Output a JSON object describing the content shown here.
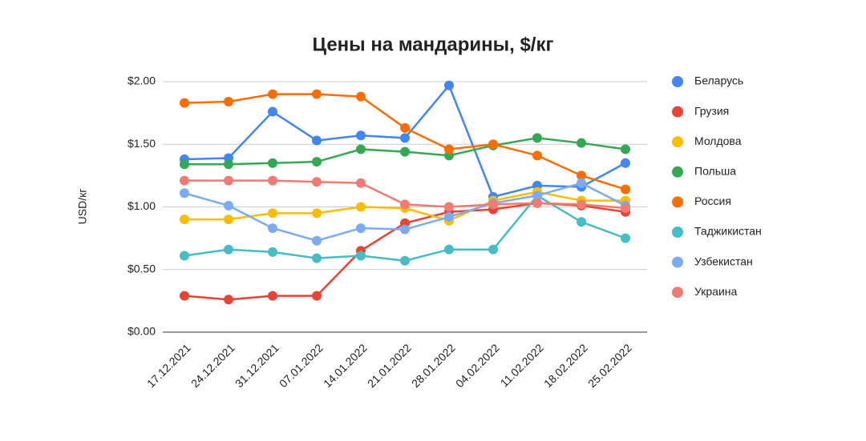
{
  "chart_data": {
    "type": "line",
    "title": "Цены  на мандарины, $/кг",
    "y_label": "USD/кг",
    "x": [
      "17.12.2021",
      "24.12.2021",
      "31.12.2021",
      "07.01.2022",
      "14.01.2022",
      "21.01.2022",
      "28.01.2022",
      "04.02.2022",
      "11.02.2022",
      "18.02.2022",
      "25.02.2022"
    ],
    "series": [
      {
        "name": "Беларусь",
        "color": "#4285f4",
        "values": [
          1.38,
          1.39,
          1.76,
          1.53,
          1.57,
          1.55,
          1.97,
          1.08,
          1.17,
          1.16,
          1.35
        ]
      },
      {
        "name": "Грузия",
        "color": "#ea4335",
        "values": [
          0.29,
          0.26,
          0.29,
          0.29,
          0.65,
          0.87,
          0.96,
          0.98,
          1.03,
          1.01,
          0.96
        ]
      },
      {
        "name": "Молдова",
        "color": "#fbbc04",
        "values": [
          0.9,
          0.9,
          0.95,
          0.95,
          1.0,
          0.99,
          0.89,
          1.05,
          1.12,
          1.05,
          1.05
        ]
      },
      {
        "name": "Польша",
        "color": "#34a853",
        "values": [
          1.34,
          1.34,
          1.35,
          1.36,
          1.46,
          1.44,
          1.41,
          1.49,
          1.55,
          1.51,
          1.46
        ]
      },
      {
        "name": "Россия",
        "color": "#ff6d01",
        "values": [
          1.83,
          1.84,
          1.9,
          1.9,
          1.88,
          1.63,
          1.46,
          1.5,
          1.41,
          1.25,
          1.14
        ]
      },
      {
        "name": "Таджикистан",
        "color": "#46bdc6",
        "values": [
          0.61,
          0.66,
          0.64,
          0.59,
          0.61,
          0.57,
          0.66,
          0.66,
          1.09,
          0.88,
          0.75
        ]
      },
      {
        "name": "Узбекистан",
        "color": "#7baaf7",
        "values": [
          1.11,
          1.01,
          0.83,
          0.73,
          0.83,
          0.82,
          0.92,
          1.03,
          1.09,
          1.19,
          1.01
        ]
      },
      {
        "name": "Украина",
        "color": "#f07b72",
        "values": [
          1.21,
          1.21,
          1.21,
          1.2,
          1.19,
          1.02,
          1.0,
          1.02,
          1.03,
          1.02,
          0.99
        ]
      }
    ],
    "ylim": [
      0,
      2
    ],
    "yticks": [
      {
        "value": 0,
        "label": "$0.00"
      },
      {
        "value": 0.5,
        "label": "$0.50"
      },
      {
        "value": 1,
        "label": "$1.00"
      },
      {
        "value": 1.5,
        "label": "$1.50"
      },
      {
        "value": 2,
        "label": "$2.00"
      }
    ],
    "grid": true,
    "legend": "right"
  }
}
